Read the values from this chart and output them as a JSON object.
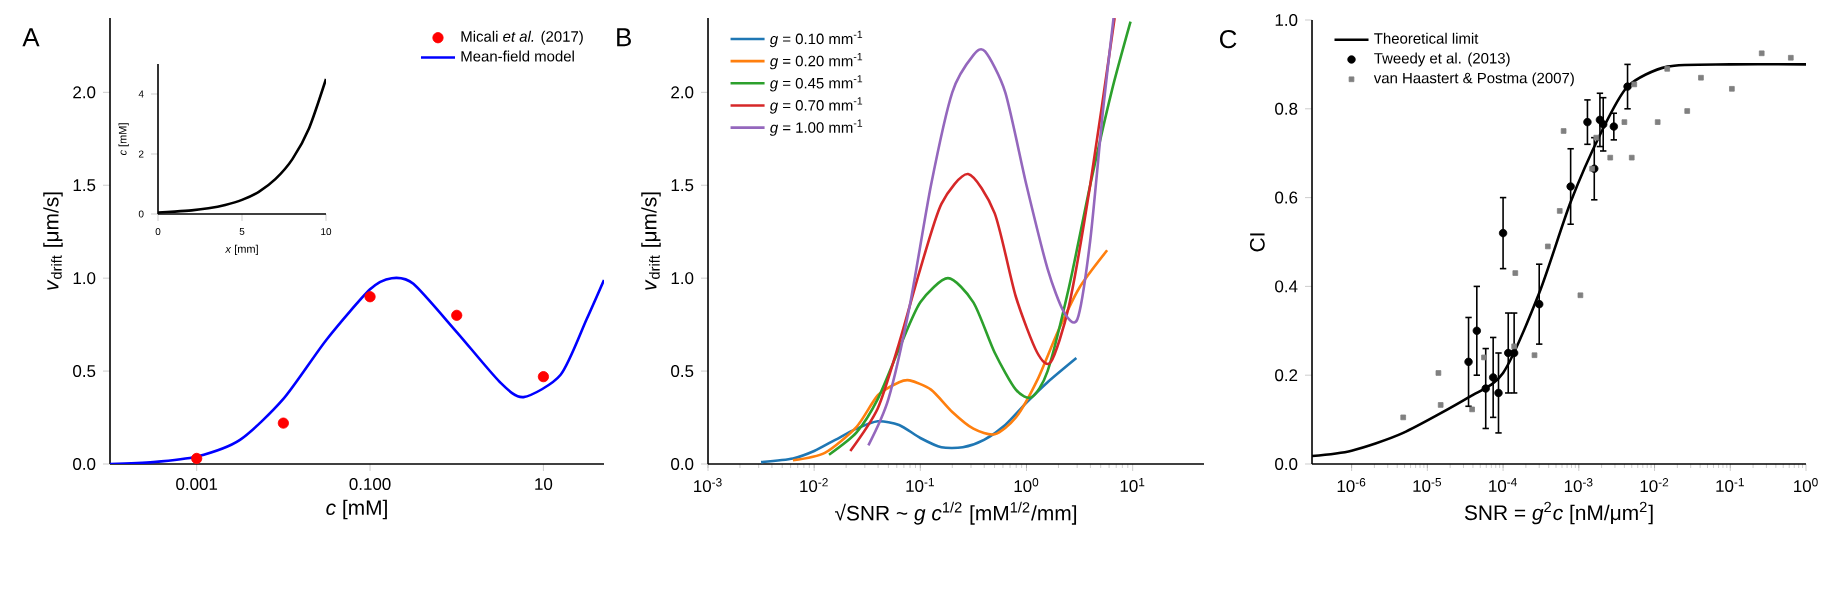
{
  "chart_data": [
    {
      "type": "line",
      "title": "A",
      "xlabel": "*c* [mM]",
      "ylabel": "*v*$_{drift}$ [μm/s]",
      "log": "x",
      "xlim": [
        0.0001,
        50
      ],
      "ylim": [
        0,
        2.4
      ],
      "xticks": [
        {
          "value": 0.001,
          "label": "0.001"
        },
        {
          "value": 0.1,
          "label": "0.100"
        },
        {
          "value": 10,
          "label": "10"
        }
      ],
      "yticks": [
        {
          "value": 0,
          "label": "0.0"
        },
        {
          "value": 0.5,
          "label": "0.5"
        },
        {
          "value": 1,
          "label": "1.0"
        },
        {
          "value": 1.5,
          "label": "1.5"
        },
        {
          "value": 2,
          "label": "2.0"
        }
      ],
      "legend": "top right",
      "series": [
        {
          "name": "Micali *et al.* (2017)",
          "type": "scatter",
          "marker": "circle",
          "color": "#ff0000",
          "x": [
            0.001,
            0.01,
            0.1,
            1,
            10
          ],
          "values": [
            0.03,
            0.22,
            0.9,
            0.8,
            0.47
          ]
        },
        {
          "name": "Mean-field model",
          "type": "line",
          "color": "#0000ff",
          "x": [
            0.0001,
            0.000316,
            0.001,
            0.00316,
            0.01,
            0.0316,
            0.1,
            0.178,
            0.316,
            1,
            3.16,
            5.89,
            15.8,
            31.6,
            50
          ],
          "values": [
            0.0,
            0.01,
            0.04,
            0.13,
            0.35,
            0.67,
            0.94,
            1.0,
            0.97,
            0.71,
            0.44,
            0.36,
            0.48,
            0.78,
            0.99
          ]
        }
      ]
    },
    {
      "type": "line",
      "xlabel": "*x* [mm]",
      "ylabel": "*c* [mM]",
      "xlim": [
        0,
        10
      ],
      "ylim": [
        0,
        5
      ],
      "xticks": [
        0,
        5,
        10
      ],
      "yticks": [
        0,
        2,
        4
      ],
      "series": [
        {
          "color": "#000000",
          "x": [
            0,
            1,
            2,
            3,
            4,
            5,
            6,
            7,
            8,
            9,
            10
          ],
          "values": [
            0.05,
            0.08,
            0.12,
            0.19,
            0.3,
            0.47,
            0.74,
            1.17,
            1.83,
            2.87,
            4.5
          ]
        }
      ]
    },
    {
      "type": "line",
      "title": "B",
      "xlabel": "√SNR ~ *g* *c*$^{1/2}$ [mM$^{1/2}$/mm]",
      "ylabel": "*v*$_{drift}$ [μm/s]",
      "log": "x",
      "xlim": [
        0.001,
        47
      ],
      "ylim": [
        0,
        2.4
      ],
      "xticks": [
        {
          "value": 0.001,
          "label": "10$^{-3}$"
        },
        {
          "value": 0.01,
          "label": "10$^{-2}$"
        },
        {
          "value": 0.1,
          "label": "10$^{-1}$"
        },
        {
          "value": 1,
          "label": "10$^{0}$"
        },
        {
          "value": 10,
          "label": "10$^{1}$"
        }
      ],
      "yticks": [
        {
          "value": 0,
          "label": "0.0"
        },
        {
          "value": 0.5,
          "label": "0.5"
        },
        {
          "value": 1,
          "label": "1.0"
        },
        {
          "value": 1.5,
          "label": "1.5"
        },
        {
          "value": 2,
          "label": "2.0"
        }
      ],
      "legend": "top left",
      "series": [
        {
          "name": "*g* = 0.10 mm$^{-1}$",
          "color": "#1f77b4",
          "x": [
            0.00316,
            0.00631,
            0.01,
            0.0158,
            0.0251,
            0.0398,
            0.0631,
            0.1,
            0.158,
            0.251,
            0.398,
            0.631,
            1,
            1.58,
            2.95
          ],
          "values": [
            0.01,
            0.03,
            0.07,
            0.13,
            0.19,
            0.23,
            0.21,
            0.14,
            0.09,
            0.09,
            0.13,
            0.21,
            0.33,
            0.44,
            0.57
          ]
        },
        {
          "name": "*g* = 0.20 mm$^{-1}$",
          "color": "#ff7f0e",
          "x": [
            0.00631,
            0.0126,
            0.0251,
            0.0398,
            0.0631,
            0.0794,
            0.126,
            0.2,
            0.316,
            0.501,
            0.794,
            1.26,
            2,
            3.16,
            5.75
          ],
          "values": [
            0.02,
            0.06,
            0.2,
            0.37,
            0.44,
            0.45,
            0.4,
            0.28,
            0.19,
            0.16,
            0.25,
            0.45,
            0.72,
            0.95,
            1.15
          ]
        },
        {
          "name": "*g* = 0.45 mm$^{-1}$",
          "color": "#2ca02c",
          "x": [
            0.0138,
            0.0251,
            0.0398,
            0.0631,
            0.1,
            0.182,
            0.316,
            0.501,
            0.794,
            1.12,
            1.58,
            2.51,
            3.98,
            6.31,
            9.55
          ],
          "values": [
            0.05,
            0.17,
            0.35,
            0.62,
            0.87,
            1.0,
            0.87,
            0.6,
            0.4,
            0.36,
            0.5,
            0.95,
            1.5,
            2.0,
            2.38
          ]
        },
        {
          "name": "*g* = 0.70 mm$^{-1}$",
          "color": "#d62728",
          "x": [
            0.0219,
            0.0398,
            0.0631,
            0.1,
            0.158,
            0.282,
            0.501,
            0.794,
            1.26,
            1.7,
            2.51,
            3.98,
            6.76
          ],
          "values": [
            0.07,
            0.3,
            0.65,
            1.05,
            1.4,
            1.56,
            1.35,
            0.9,
            0.6,
            0.55,
            0.85,
            1.5,
            2.4
          ]
        },
        {
          "name": "*g* = 1.00 mm$^{-1}$",
          "color": "#9467bd",
          "x": [
            0.0324,
            0.0501,
            0.0794,
            0.126,
            0.2,
            0.316,
            0.407,
            0.631,
            1,
            1.58,
            2.24,
            3.02,
            3.98,
            5.25,
            6.61
          ],
          "values": [
            0.1,
            0.35,
            0.85,
            1.5,
            2.0,
            2.2,
            2.22,
            2.0,
            1.5,
            1.05,
            0.82,
            0.78,
            1.2,
            1.9,
            2.4
          ]
        }
      ]
    },
    {
      "type": "line",
      "title": "C",
      "xlabel": "SNR = *g*$^{2}$*c* [nM/μm$^{2}$]",
      "ylabel": "CI",
      "log": "x",
      "xlim": [
        3e-07,
        1
      ],
      "ylim": [
        0,
        1
      ],
      "xticks": [
        {
          "value": 1e-06,
          "label": "10$^{-6}$"
        },
        {
          "value": 1e-05,
          "label": "10$^{-5}$"
        },
        {
          "value": 0.0001,
          "label": "10$^{-4}$"
        },
        {
          "value": 0.001,
          "label": "10$^{-3}$"
        },
        {
          "value": 0.01,
          "label": "10$^{-2}$"
        },
        {
          "value": 0.1,
          "label": "10$^{-1}$"
        },
        {
          "value": 1,
          "label": "10$^{0}$"
        }
      ],
      "yticks": [
        {
          "value": 0,
          "label": "0.0"
        },
        {
          "value": 0.2,
          "label": "0.2"
        },
        {
          "value": 0.4,
          "label": "0.4"
        },
        {
          "value": 0.6,
          "label": "0.6"
        },
        {
          "value": 0.8,
          "label": "0.8"
        },
        {
          "value": 1,
          "label": "1.0"
        }
      ],
      "legend": "top left",
      "series": [
        {
          "name": "Theoretical limit",
          "type": "line",
          "color": "#000000",
          "x": [
            3e-07,
            1e-06,
            4.8e-06,
            3.5e-05,
            0.0001,
            0.0003,
            0.00078,
            0.00195,
            0.0044,
            0.0148,
            0.1,
            1
          ],
          "values": [
            0.018,
            0.03,
            0.07,
            0.15,
            0.205,
            0.385,
            0.59,
            0.745,
            0.85,
            0.895,
            0.9,
            0.9
          ]
        },
        {
          "name": "Tweedy et al. (2013)",
          "type": "scatter",
          "marker": "circle",
          "color": "#000000",
          "x": [
            3.5e-05,
            4.5e-05,
            5.9e-05,
            7.4e-05,
            8.7e-05,
            0.000117,
            0.00014,
            0.0001,
            0.0003,
            0.00078,
            0.0013,
            0.0016,
            0.0019,
            0.0021,
            0.0029,
            0.0044
          ],
          "values": [
            0.23,
            0.3,
            0.17,
            0.195,
            0.16,
            0.25,
            0.25,
            0.52,
            0.36,
            0.625,
            0.77,
            0.665,
            0.775,
            0.765,
            0.76,
            0.85
          ],
          "errors": [
            0.1,
            0.1,
            0.09,
            0.09,
            0.09,
            0.09,
            0.09,
            0.08,
            0.09,
            0.085,
            0.05,
            0.07,
            0.06,
            0.06,
            0.03,
            0.05
          ]
        },
        {
          "name": "van Haastert & Postma (2007)",
          "type": "scatter",
          "marker": "square",
          "color": "#808080",
          "x": [
            4.8e-06,
            1.4e-05,
            1.5e-05,
            3.9e-05,
            5.6e-05,
            0.00014,
            0.000145,
            0.00026,
            0.00039,
            0.00056,
            0.00063,
            0.00105,
            0.0015,
            0.0017,
            0.0026,
            0.004,
            0.005,
            0.0054,
            0.011,
            0.0147,
            0.027,
            0.041,
            0.105,
            0.26,
            0.63
          ],
          "values": [
            0.105,
            0.205,
            0.133,
            0.123,
            0.24,
            0.265,
            0.43,
            0.245,
            0.49,
            0.57,
            0.75,
            0.38,
            0.665,
            0.735,
            0.69,
            0.77,
            0.69,
            0.855,
            0.77,
            0.89,
            0.795,
            0.87,
            0.845,
            0.925,
            0.915
          ]
        }
      ]
    }
  ]
}
